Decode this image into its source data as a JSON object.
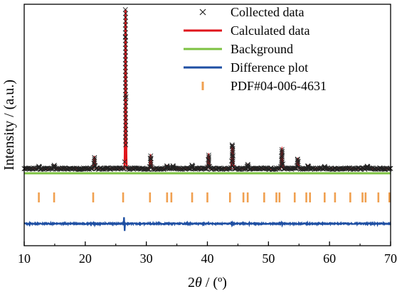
{
  "chart_data": {
    "type": "line",
    "xlabel": "2θ / (º)",
    "xlabel_parts": {
      "italic": "θ",
      "prefix": "2",
      "suffix": " / (º)"
    },
    "ylabel": "Intensity / (a.u.)",
    "xlim": [
      10,
      70
    ],
    "x_ticks": [
      10,
      20,
      30,
      40,
      50,
      60,
      70
    ],
    "y_ticks_visible": false,
    "grid": false,
    "legend_position": "top-right",
    "legend": [
      {
        "label": "Collected data",
        "marker": "x",
        "color": "#222222"
      },
      {
        "label": "Calculated data",
        "marker": "line",
        "color": "#e0151b"
      },
      {
        "label": "Background",
        "marker": "line",
        "color": "#7dc242"
      },
      {
        "label": "Difference plot",
        "marker": "line",
        "color": "#1e4fa3"
      },
      {
        "label": "PDF#04-006-4631",
        "marker": "bar",
        "color": "#f0a050"
      }
    ],
    "background_level": 0.02,
    "peaks": [
      {
        "x": 12.4,
        "intensity": 0.012
      },
      {
        "x": 14.9,
        "intensity": 0.02
      },
      {
        "x": 21.5,
        "intensity": 0.07
      },
      {
        "x": 26.6,
        "intensity": 1.0
      },
      {
        "x": 30.7,
        "intensity": 0.08
      },
      {
        "x": 33.4,
        "intensity": 0.018
      },
      {
        "x": 34.4,
        "intensity": 0.015
      },
      {
        "x": 37.5,
        "intensity": 0.018
      },
      {
        "x": 40.2,
        "intensity": 0.085
      },
      {
        "x": 44.1,
        "intensity": 0.15
      },
      {
        "x": 46.6,
        "intensity": 0.025
      },
      {
        "x": 52.2,
        "intensity": 0.12
      },
      {
        "x": 54.8,
        "intensity": 0.06
      },
      {
        "x": 56.5,
        "intensity": 0.018
      },
      {
        "x": 59.2,
        "intensity": 0.01
      },
      {
        "x": 66.2,
        "intensity": 0.014
      }
    ],
    "reference_lines": [
      12.4,
      14.9,
      21.3,
      26.2,
      30.6,
      33.4,
      34.1,
      37.5,
      40.0,
      43.7,
      45.9,
      46.6,
      49.3,
      51.3,
      51.8,
      54.3,
      56.2,
      56.8,
      59.2,
      60.9,
      63.4,
      65.4,
      65.9,
      68.0,
      69.8
    ],
    "difference_features": [
      {
        "x": 26.4,
        "amplitude": 1
      },
      {
        "x": 44.0,
        "amplitude": 0.3
      },
      {
        "x": 52.2,
        "amplitude": 0.2
      },
      {
        "x": 30.7,
        "amplitude": 0.12
      },
      {
        "x": 40.2,
        "amplitude": 0.1
      },
      {
        "x": 21.5,
        "amplitude": 0.1
      }
    ]
  }
}
